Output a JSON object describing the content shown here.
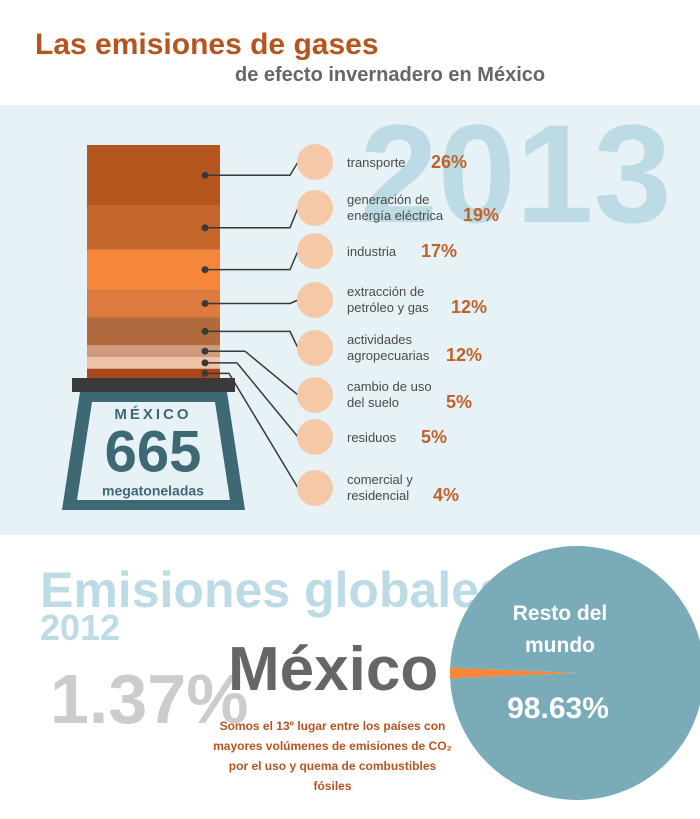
{
  "header": {
    "title": "Las emisiones de gases",
    "subtitle": "de efecto invernadero en México"
  },
  "year": "2013",
  "scale": {
    "label": "MÉXICO",
    "value": 665,
    "unit": "megatoneladas"
  },
  "chart_data": [
    {
      "type": "stacked-bar",
      "categories": [
        "transporte",
        "generación de energía eléctrica",
        "industria",
        "extracción de petróleo y gas",
        "actividades agropecuarias",
        "cambio de uso del suelo",
        "residuos",
        "comercial y residencial"
      ],
      "values": [
        26,
        19,
        17,
        12,
        12,
        5,
        5,
        4
      ],
      "value_labels": [
        "26%",
        "19%",
        "17%",
        "12%",
        "12%",
        "5%",
        "5%",
        "4%"
      ],
      "colors": [
        "#b5561f",
        "#c4662c",
        "#f5863a",
        "#dc7a40",
        "#b06a3e",
        "#d09a7c",
        "#efc3a6",
        "#a9481c"
      ]
    },
    {
      "type": "pie",
      "title": "Emisiones globales",
      "subtitle": "2012",
      "categories": [
        "México",
        "Resto del mundo"
      ],
      "values": [
        1.37,
        98.63
      ],
      "value_labels": [
        "1.37%",
        "98.63%"
      ],
      "colors": [
        "#f5863a",
        "#7aabb8"
      ]
    }
  ],
  "note": "Somos el 13º lugar entre los países con mayores volúmenes de emisiones de CO₂ por el uso y quema de combustibles fósiles"
}
